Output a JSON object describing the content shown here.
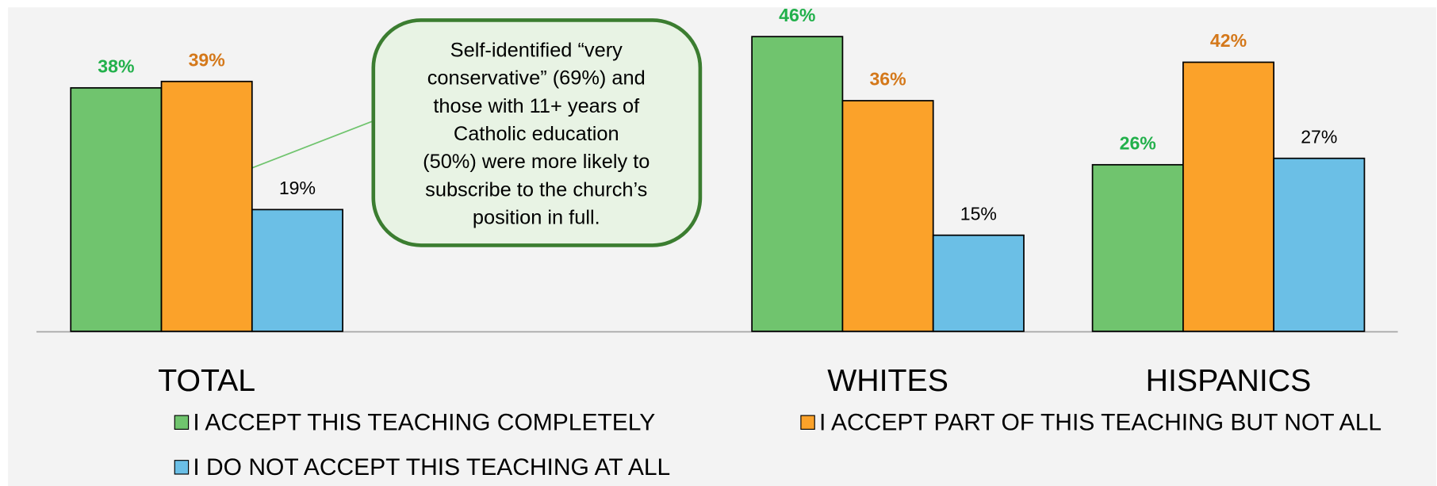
{
  "chart_data": {
    "type": "bar",
    "categories": [
      "TOTAL",
      null,
      "WHITES",
      "HISPANICS"
    ],
    "series": [
      {
        "name": "I ACCEPT THIS TEACHING COMPLETELY",
        "color": "#70c46e",
        "label_color": "#22b04b",
        "label_bold": true,
        "values": [
          38,
          null,
          46,
          26
        ],
        "value_labels": [
          "38%",
          null,
          "46%",
          "26%"
        ]
      },
      {
        "name": "I ACCEPT PART OF THIS TEACHING BUT NOT ALL",
        "color": "#fba22a",
        "label_color": "#d4781a",
        "label_bold": true,
        "values": [
          39,
          null,
          36,
          42
        ],
        "value_labels": [
          "39%",
          null,
          "36%",
          "42%"
        ]
      },
      {
        "name": "I DO NOT ACCEPT THIS TEACHING AT ALL",
        "color": "#6bbfe6",
        "label_color": "#000000",
        "label_bold": false,
        "values": [
          19,
          null,
          15,
          27
        ],
        "value_labels": [
          "19%",
          null,
          "15%",
          "27%"
        ]
      }
    ],
    "annotation": [
      "Self-identified “very",
      "conservative” (69%) and",
      "those with 11+ years of",
      "Catholic education",
      "(50%) were more likely to",
      "subscribe to the church’s",
      "position in full."
    ]
  }
}
